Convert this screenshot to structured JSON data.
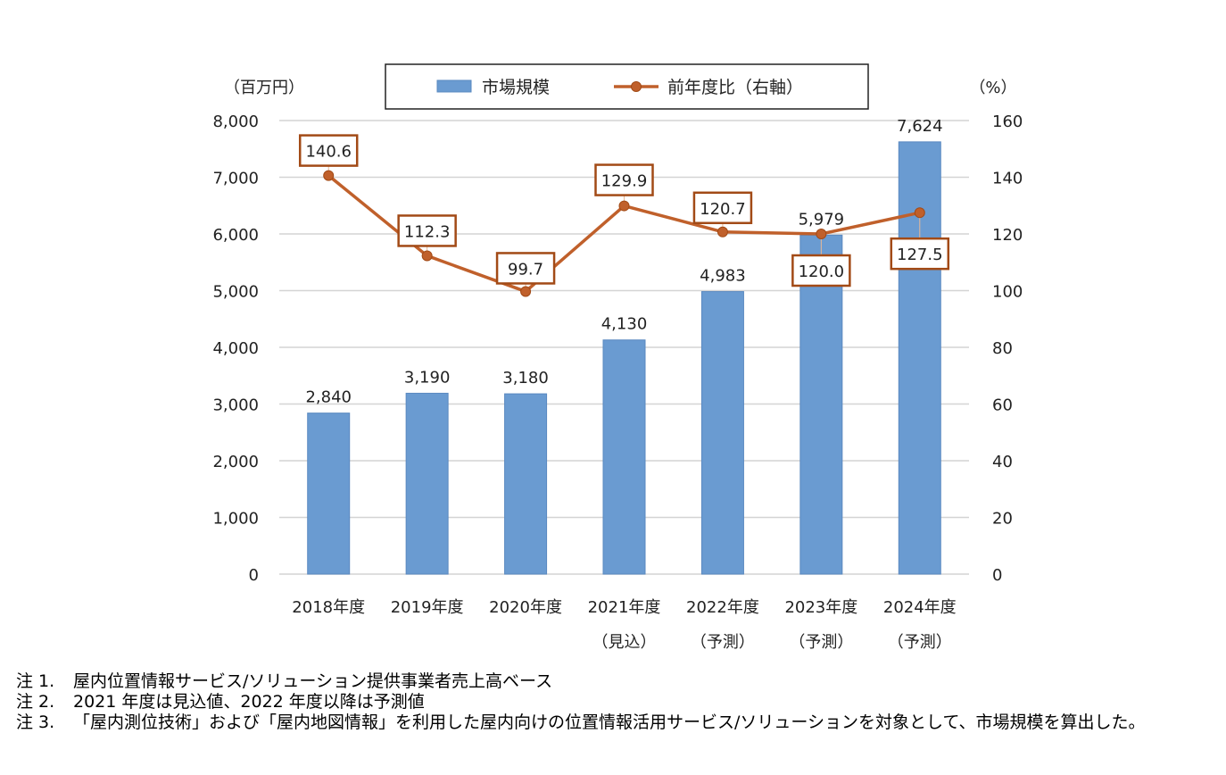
{
  "chart_data": {
    "type": "bar",
    "categories": [
      "2018年度",
      "2019年度",
      "2020年度",
      "2021年度",
      "2022年度",
      "2023年度",
      "2024年度"
    ],
    "category_sublabels": [
      "",
      "",
      "",
      "（見込）",
      "（予測）",
      "（予測）",
      "（予測）"
    ],
    "y_left_unit": "（百万円）",
    "y_right_unit": "（%）",
    "ylim_left": [
      0,
      8000
    ],
    "ylim_right": [
      0,
      160
    ],
    "yticks_left": [
      "0",
      "1,000",
      "2,000",
      "3,000",
      "4,000",
      "5,000",
      "6,000",
      "7,000",
      "8,000"
    ],
    "yticks_right": [
      "0",
      "20",
      "40",
      "60",
      "80",
      "100",
      "120",
      "140",
      "160"
    ],
    "grid": true,
    "legend_position": "top-center",
    "series": [
      {
        "name": "市場規模",
        "type": "bar",
        "axis": "left",
        "color": "#6a9bd1",
        "values": [
          2840,
          3190,
          3180,
          4130,
          4983,
          5979,
          7624
        ],
        "labels": [
          "2,840",
          "3,190",
          "3,180",
          "4,130",
          "4,983",
          "5,979",
          "7,624"
        ]
      },
      {
        "name": "前年度比（右軸）",
        "type": "line",
        "axis": "right",
        "color": "#c0602b",
        "values": [
          140.6,
          112.3,
          99.7,
          129.9,
          120.7,
          120.0,
          127.5
        ],
        "labels": [
          "140.6",
          "112.3",
          "99.7",
          "129.9",
          "120.7",
          "120.0",
          "127.5"
        ]
      }
    ]
  },
  "notes": [
    {
      "label": "注 1.",
      "text": "屋内位置情報サービス/ソリューション提供事業者売上高ベース"
    },
    {
      "label": "注 2.",
      "text": "2021 年度は見込値、2022 年度以降は予測値"
    },
    {
      "label": "注 3.",
      "text": "「屋内測位技術」および「屋内地図情報」を利用した屋内向けの位置情報活用サービス/ソリューションを対象として、市場規模を算出した。"
    }
  ]
}
